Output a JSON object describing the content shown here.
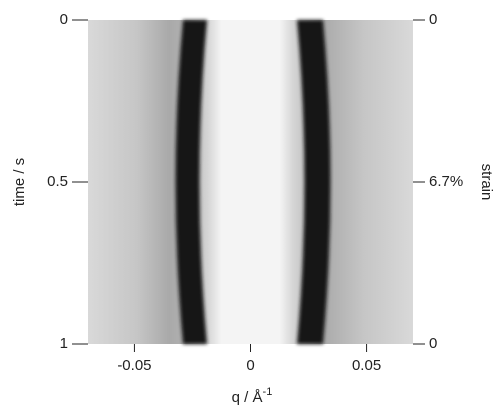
{
  "chart_data": {
    "type": "image",
    "xlabel": "q / Å",
    "xlabel_sup": "-1",
    "ylabel": "time / s",
    "y2label": "strain",
    "xlim": [
      -0.07,
      0.07
    ],
    "xticks": [
      -0.05,
      0,
      0.05
    ],
    "ylim": [
      1,
      0
    ],
    "yticks": [
      0,
      0.5,
      1
    ],
    "y2ticks": [
      {
        "time": 0,
        "value": 0,
        "label": "0"
      },
      {
        "time": 0.5,
        "value": 6.7,
        "label": "6.7%"
      },
      {
        "time": 1,
        "value": 0,
        "label": "0"
      }
    ]
  }
}
